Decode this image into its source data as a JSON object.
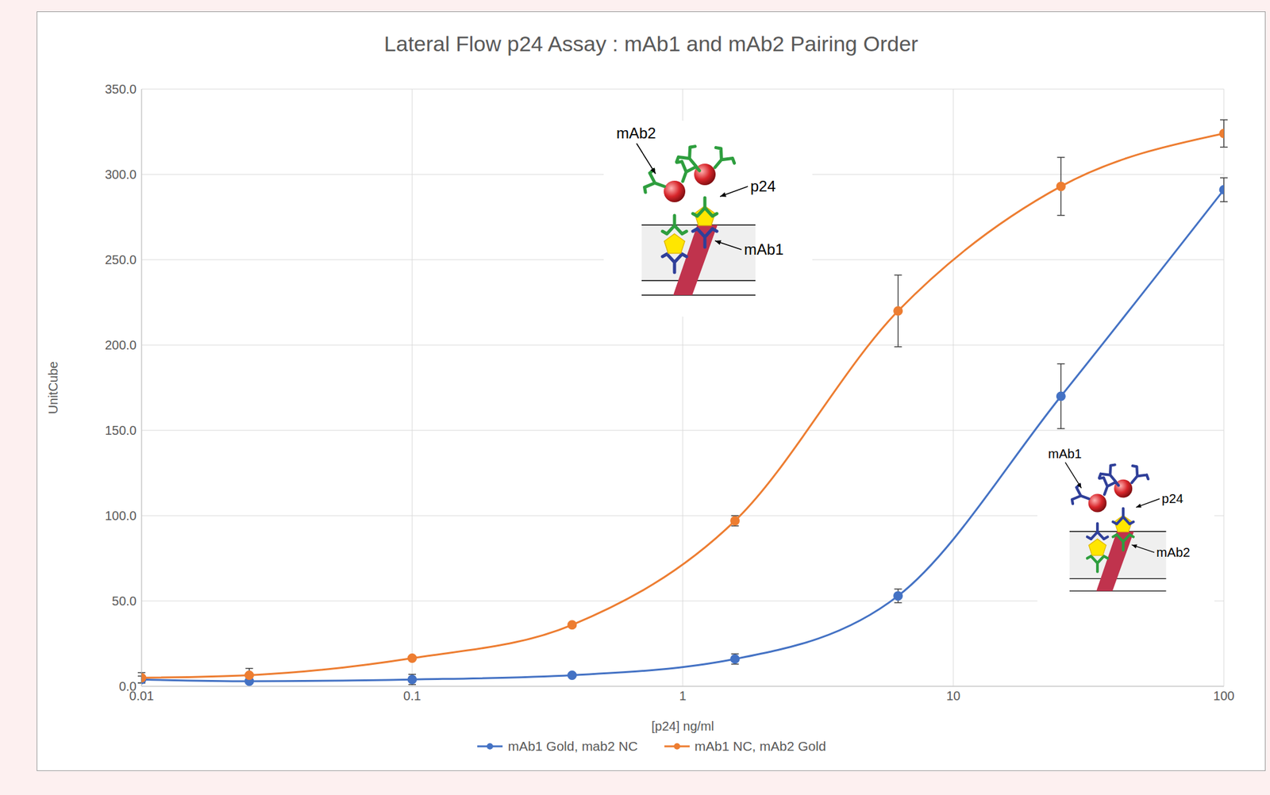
{
  "chart_data": {
    "type": "line",
    "title": "Lateral Flow p24 Assay : mAb1 and mAb2 Pairing Order",
    "x_label": "[p24] ng/ml",
    "y_label": "UnitCube",
    "log": "x",
    "grid": true,
    "legend": "bottom",
    "marker": "circle",
    "x": [
      0.01,
      0.025,
      0.1,
      0.39,
      1.56,
      6.25,
      25,
      100
    ],
    "xlim": [
      0.01,
      100
    ],
    "xticks": [
      0.01,
      0.1,
      1,
      10,
      100
    ],
    "ylim": [
      0,
      350
    ],
    "yticks": [
      {
        "value": 0,
        "label": "0.0"
      },
      {
        "value": 50,
        "label": "50.0"
      },
      {
        "value": 100,
        "label": "100.0"
      },
      {
        "value": 150,
        "label": "150.0"
      },
      {
        "value": 200,
        "label": "200.0"
      },
      {
        "value": 250,
        "label": "250.0"
      },
      {
        "value": 300,
        "label": "300.0"
      },
      {
        "value": 350,
        "label": "350.0"
      }
    ],
    "series": [
      {
        "name": "mAb1 Gold, mab2 NC",
        "color": "#4472c4",
        "values": [
          4,
          3,
          4,
          6.5,
          16,
          53,
          170,
          291
        ],
        "errors": [
          2,
          1,
          3,
          1,
          3,
          4,
          19,
          7
        ]
      },
      {
        "name": "mAb1 NC, mAb2 Gold",
        "color": "#ed7d31",
        "values": [
          5,
          6.5,
          16.5,
          36,
          97,
          220,
          293,
          324
        ],
        "errors": [
          3,
          4,
          1,
          1,
          3,
          21,
          17,
          8
        ]
      }
    ],
    "annotations": [
      {
        "gold": "mAb2",
        "antigen": "p24",
        "capture": "mAb1"
      },
      {
        "gold": "mAb1",
        "antigen": "p24",
        "capture": "mAb2"
      }
    ]
  }
}
